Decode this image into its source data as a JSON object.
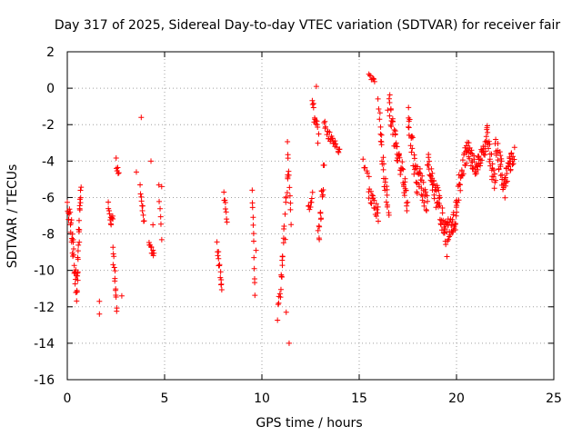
{
  "chart_data": {
    "type": "scatter",
    "title": "Day 317 of 2025, Sidereal Day-to-day VTEC variation (SDTVAR) for receiver fair",
    "xlabel": "GPS time / hours",
    "ylabel": "SDTVAR / TECUs",
    "xlim": [
      0,
      25
    ],
    "ylim": [
      -16,
      2
    ],
    "xticks": [
      0,
      5,
      10,
      15,
      20,
      25
    ],
    "yticks": [
      2,
      0,
      -2,
      -4,
      -6,
      -8,
      -10,
      -12,
      -14,
      -16
    ],
    "xtick_labels": [
      "0",
      "5",
      "10",
      "15",
      "20",
      "25"
    ],
    "ytick_labels": [
      "2",
      "0",
      "-2",
      "-4",
      "-6",
      "-8",
      "-10",
      "-12",
      "-14",
      "-16"
    ],
    "grid": true,
    "marker": "plus",
    "color": "#ff0000",
    "segments": [
      {
        "t0": 0.0,
        "t1": 0.25,
        "v0": -6.5,
        "v1": -8.0,
        "amp": 1.2,
        "n": 14
      },
      {
        "t0": 0.25,
        "t1": 0.5,
        "v0": -8.0,
        "v1": -11.5,
        "amp": 1.5,
        "n": 20
      },
      {
        "t0": 0.5,
        "t1": 0.7,
        "v0": -11.0,
        "v1": -5.0,
        "amp": 1.5,
        "n": 22
      },
      {
        "t0": 2.1,
        "t1": 2.35,
        "v0": -6.5,
        "v1": -7.5,
        "amp": 0.8,
        "n": 12
      },
      {
        "t0": 2.35,
        "t1": 2.55,
        "v0": -9.0,
        "v1": -12.0,
        "amp": 1.0,
        "n": 14
      },
      {
        "t0": 2.5,
        "t1": 2.65,
        "v0": -4.0,
        "v1": -4.8,
        "amp": 0.5,
        "n": 6
      },
      {
        "t0": 3.75,
        "t1": 3.95,
        "v0": -5.5,
        "v1": -7.3,
        "amp": 0.6,
        "n": 10
      },
      {
        "t0": 4.2,
        "t1": 4.45,
        "v0": -8.5,
        "v1": -9.2,
        "amp": 0.4,
        "n": 10
      },
      {
        "t0": 4.7,
        "t1": 4.85,
        "v0": -5.5,
        "v1": -8.2,
        "amp": 0.4,
        "n": 6
      },
      {
        "t0": 7.7,
        "t1": 7.95,
        "v0": -8.5,
        "v1": -11.0,
        "amp": 0.8,
        "n": 14
      },
      {
        "t0": 8.05,
        "t1": 8.2,
        "v0": -5.8,
        "v1": -7.3,
        "amp": 0.4,
        "n": 8
      },
      {
        "t0": 9.5,
        "t1": 9.65,
        "v0": -5.5,
        "v1": -11.2,
        "amp": 0.6,
        "n": 12
      },
      {
        "t0": 10.8,
        "t1": 11.05,
        "v0": -12.5,
        "v1": -10.0,
        "amp": 0.8,
        "n": 10
      },
      {
        "t0": 11.0,
        "t1": 11.35,
        "v0": -10.0,
        "v1": -4.5,
        "amp": 1.0,
        "n": 16
      },
      {
        "t0": 11.3,
        "t1": 11.5,
        "v0": -3.3,
        "v1": -7.5,
        "amp": 0.8,
        "n": 10
      },
      {
        "t0": 12.4,
        "t1": 12.6,
        "v0": -6.5,
        "v1": -6.0,
        "amp": 0.6,
        "n": 8
      },
      {
        "t0": 12.6,
        "t1": 12.9,
        "v0": -0.5,
        "v1": -3.0,
        "amp": 1.2,
        "n": 14
      },
      {
        "t0": 12.9,
        "t1": 13.2,
        "v0": -8.5,
        "v1": -4.5,
        "amp": 1.5,
        "n": 18
      },
      {
        "t0": 13.2,
        "t1": 13.6,
        "v0": -2.0,
        "v1": -3.0,
        "amp": 0.6,
        "n": 14
      },
      {
        "t0": 13.6,
        "t1": 14.0,
        "v0": -2.8,
        "v1": -3.5,
        "amp": 0.4,
        "n": 12
      },
      {
        "t0": 15.2,
        "t1": 15.5,
        "v0": -4.0,
        "v1": -5.0,
        "amp": 0.4,
        "n": 6
      },
      {
        "t0": 15.5,
        "t1": 15.8,
        "v0": 0.7,
        "v1": 0.4,
        "amp": 0.2,
        "n": 8
      },
      {
        "t0": 15.5,
        "t1": 16.0,
        "v0": -5.8,
        "v1": -7.0,
        "amp": 1.0,
        "n": 20
      },
      {
        "t0": 16.0,
        "t1": 16.5,
        "v0": -1.0,
        "v1": -7.5,
        "amp": 1.5,
        "n": 28
      },
      {
        "t0": 16.5,
        "t1": 17.0,
        "v0": -0.5,
        "v1": -4.0,
        "amp": 1.5,
        "n": 28
      },
      {
        "t0": 17.0,
        "t1": 17.5,
        "v0": -3.5,
        "v1": -6.5,
        "amp": 1.2,
        "n": 26
      },
      {
        "t0": 17.5,
        "t1": 18.0,
        "v0": -1.5,
        "v1": -5.5,
        "amp": 1.5,
        "n": 26
      },
      {
        "t0": 18.0,
        "t1": 18.5,
        "v0": -4.5,
        "v1": -6.5,
        "amp": 1.3,
        "n": 28
      },
      {
        "t0": 18.5,
        "t1": 19.0,
        "v0": -4.0,
        "v1": -6.0,
        "amp": 1.5,
        "n": 28
      },
      {
        "t0": 19.0,
        "t1": 19.5,
        "v0": -6.0,
        "v1": -8.5,
        "amp": 1.5,
        "n": 30
      },
      {
        "t0": 19.5,
        "t1": 20.0,
        "v0": -8.0,
        "v1": -7.0,
        "amp": 1.3,
        "n": 30
      },
      {
        "t0": 20.0,
        "t1": 20.5,
        "v0": -6.0,
        "v1": -3.5,
        "amp": 1.3,
        "n": 26
      },
      {
        "t0": 20.5,
        "t1": 21.0,
        "v0": -3.0,
        "v1": -4.5,
        "amp": 1.0,
        "n": 26
      },
      {
        "t0": 21.0,
        "t1": 21.5,
        "v0": -4.5,
        "v1": -3.0,
        "amp": 1.0,
        "n": 26
      },
      {
        "t0": 21.5,
        "t1": 22.0,
        "v0": -2.2,
        "v1": -5.5,
        "amp": 1.2,
        "n": 28
      },
      {
        "t0": 22.0,
        "t1": 22.5,
        "v0": -3.0,
        "v1": -5.5,
        "amp": 1.2,
        "n": 28
      },
      {
        "t0": 22.5,
        "t1": 22.95,
        "v0": -5.0,
        "v1": -3.5,
        "amp": 1.0,
        "n": 26
      }
    ],
    "outliers": [
      {
        "x": 3.8,
        "y": -1.6
      },
      {
        "x": 3.55,
        "y": -4.6
      },
      {
        "x": 4.3,
        "y": -4.0
      },
      {
        "x": 1.65,
        "y": -11.7
      },
      {
        "x": 1.65,
        "y": -12.4
      },
      {
        "x": 2.8,
        "y": -11.4
      },
      {
        "x": 11.4,
        "y": -14.0
      },
      {
        "x": 11.2,
        "y": -8.3
      },
      {
        "x": 11.25,
        "y": -12.3
      },
      {
        "x": 12.8,
        "y": 0.1
      },
      {
        "x": 4.4,
        "y": -7.5
      },
      {
        "x": 4.85,
        "y": -5.4
      },
      {
        "x": 9.7,
        "y": -8.9
      }
    ]
  }
}
